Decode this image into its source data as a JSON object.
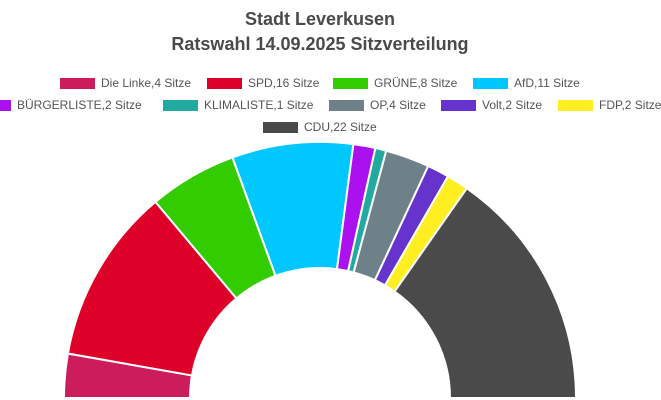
{
  "chart_data": {
    "type": "pie",
    "title": "Stadt Leverkusen",
    "subtitle": "Ratswahl 14.09.2025 Sitzverteilung",
    "series": [
      {
        "name": "Die Linke",
        "label": "Die Linke,4 Sitze",
        "value": 4,
        "color": "#cc1c5c"
      },
      {
        "name": "SPD",
        "label": "SPD,16 Sitze",
        "value": 16,
        "color": "#dd0028"
      },
      {
        "name": "GRÜNE",
        "label": "GRÜNE,8 Sitze",
        "value": 8,
        "color": "#33cc00"
      },
      {
        "name": "AfD",
        "label": "AfD,11 Sitze",
        "value": 11,
        "color": "#00c8ff"
      },
      {
        "name": "BÜRGERLISTE",
        "label": "BÜRGERLISTE,2 Sitze",
        "value": 2,
        "color": "#aa11ee"
      },
      {
        "name": "KLIMALISTE",
        "label": "KLIMALISTE,1 Sitze",
        "value": 1,
        "color": "#22aaa0"
      },
      {
        "name": "OP",
        "label": "OP,4 Sitze",
        "value": 4,
        "color": "#6e8088"
      },
      {
        "name": "Volt",
        "label": "Volt,2 Sitze",
        "value": 2,
        "color": "#6633cc"
      },
      {
        "name": "FDP",
        "label": "FDP,2 Sitze",
        "value": 2,
        "color": "#ffee22"
      },
      {
        "name": "CDU",
        "label": "CDU,22 Sitze",
        "value": 22,
        "color": "#4a4a4a"
      }
    ],
    "legend_placement": "top"
  }
}
